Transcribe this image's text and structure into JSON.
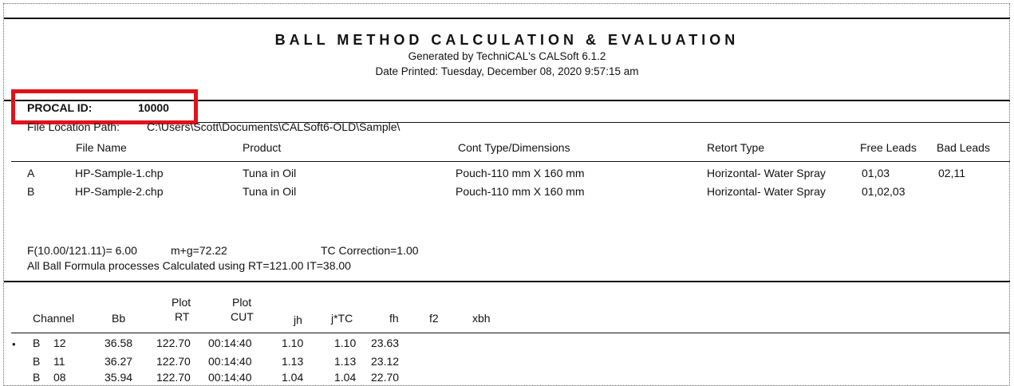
{
  "header": {
    "title": "BALL METHOD CALCULATION & EVALUATION",
    "generated_by": "Generated by TechniCAL's CALSoft 6.1.2",
    "date_printed": "Date Printed: Tuesday, December 08, 2020   9:57:15 am"
  },
  "procal": {
    "label": "PROCAL ID:",
    "value": "10000",
    "highlight_color": "#e0121b"
  },
  "file_location": {
    "label": "File Location Path:",
    "value": "C:\\Users\\Scott\\Documents\\CALSoft6-OLD\\Sample\\"
  },
  "files_table": {
    "columns": [
      "File Name",
      "Product",
      "Cont Type/Dimensions",
      "Retort Type",
      "Free Leads",
      "Bad Leads"
    ],
    "rows": [
      {
        "id": "A",
        "file": "HP-Sample-1.chp",
        "product": "Tuna in Oil",
        "cont": "Pouch-110 mm X 160 mm",
        "retort": "Horizontal- Water Spray",
        "free": "01,03",
        "bad": "02,11"
      },
      {
        "id": "B",
        "file": "HP-Sample-2.chp",
        "product": "Tuna in Oil",
        "cont": "Pouch-110 mm X 160 mm",
        "retort": "Horizontal- Water Spray",
        "free": "01,02,03",
        "bad": ""
      }
    ]
  },
  "params": {
    "f_value": "F(10.00/121.11)= 6.00",
    "mg": "m+g=72.22",
    "tc": "TC Correction=1.00",
    "note": "All Ball Formula processes Calculated using RT=121.00 IT=38.00"
  },
  "channel_table": {
    "headers": {
      "channel": "Channel",
      "bb": "Bb",
      "plot_rt_1": "Plot",
      "plot_rt_2": "RT",
      "plot_cut_1": "Plot",
      "plot_cut_2": "CUT",
      "jh": "jh",
      "jtc": "j*TC",
      "fh": "fh",
      "f2": "f2",
      "xbh": "xbh"
    },
    "rows": [
      {
        "bullet": "•",
        "file": "B",
        "ch": "12",
        "bb": "36.58",
        "rt": "122.70",
        "cut": "00:14:40",
        "jh": "1.10",
        "jtc": "1.10",
        "fh": "23.63"
      },
      {
        "bullet": "",
        "file": "B",
        "ch": "11",
        "bb": "36.27",
        "rt": "122.70",
        "cut": "00:14:40",
        "jh": "1.13",
        "jtc": "1.13",
        "fh": "23.12"
      },
      {
        "bullet": "",
        "file": "B",
        "ch": "08",
        "bb": "35.94",
        "rt": "122.70",
        "cut": "00:14:40",
        "jh": "1.04",
        "jtc": "1.04",
        "fh": "22.70"
      }
    ]
  }
}
